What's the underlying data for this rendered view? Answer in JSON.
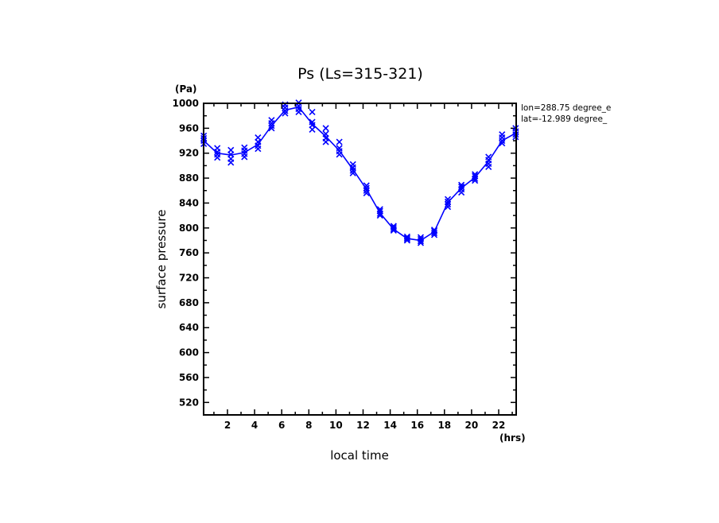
{
  "chart_data": {
    "type": "line",
    "title": "Ps (Ls=315-321)",
    "xlabel": "local time",
    "xunit": "(hrs)",
    "ylabel": "surface pressure",
    "yunit": "(Pa)",
    "annotations": [
      "lon=288.75 degree_e",
      "lat=-12.989 degree_"
    ],
    "xlim": [
      0,
      23.3
    ],
    "ylim": [
      500,
      1000
    ],
    "xticks": [
      2,
      4,
      6,
      8,
      10,
      12,
      14,
      16,
      18,
      20,
      22
    ],
    "yticks": [
      520,
      560,
      600,
      640,
      680,
      720,
      760,
      800,
      840,
      880,
      920,
      960,
      1000
    ],
    "grid": false,
    "color": "#0000ff",
    "series": [
      {
        "x": [
          0.25,
          1.25,
          2.25,
          3.25,
          4.25,
          5.25,
          6.25,
          7.25,
          8.25,
          9.25,
          10.25,
          11.25,
          12.25,
          13.25,
          14.25,
          15.25,
          16.25,
          17.25,
          18.25,
          19.25,
          20.25,
          21.25,
          22.25,
          23.25
        ],
        "y": [
          940,
          920,
          917,
          921,
          934,
          964,
          989,
          994,
          967,
          947,
          924,
          894,
          862,
          824,
          798,
          783,
          780,
          794,
          841,
          864,
          881,
          907,
          940,
          952
        ]
      }
    ],
    "scatter": [
      [
        935,
        940,
        944,
        948
      ],
      [
        913,
        918,
        922,
        928
      ],
      [
        905,
        911,
        918,
        925
      ],
      [
        914,
        919,
        924,
        929
      ],
      [
        927,
        932,
        938,
        945
      ],
      [
        960,
        964,
        968,
        973
      ],
      [
        984,
        988,
        993,
        998
      ],
      [
        986,
        991,
        996,
        1001
      ],
      [
        958,
        965,
        970,
        986
      ],
      [
        938,
        944,
        951,
        960
      ],
      [
        918,
        923,
        928,
        938
      ],
      [
        888,
        892,
        897,
        902
      ],
      [
        856,
        860,
        864,
        868
      ],
      [
        820,
        823,
        827,
        830
      ],
      [
        796,
        798,
        801,
        803
      ],
      [
        780,
        782,
        784,
        786
      ],
      [
        776,
        779,
        782,
        785
      ],
      [
        789,
        792,
        795,
        797
      ],
      [
        834,
        838,
        842,
        846
      ],
      [
        857,
        862,
        866,
        869
      ],
      [
        876,
        879,
        883,
        886
      ],
      [
        898,
        903,
        909,
        914
      ],
      [
        936,
        940,
        945,
        950
      ],
      [
        946,
        950,
        955,
        960
      ]
    ]
  }
}
